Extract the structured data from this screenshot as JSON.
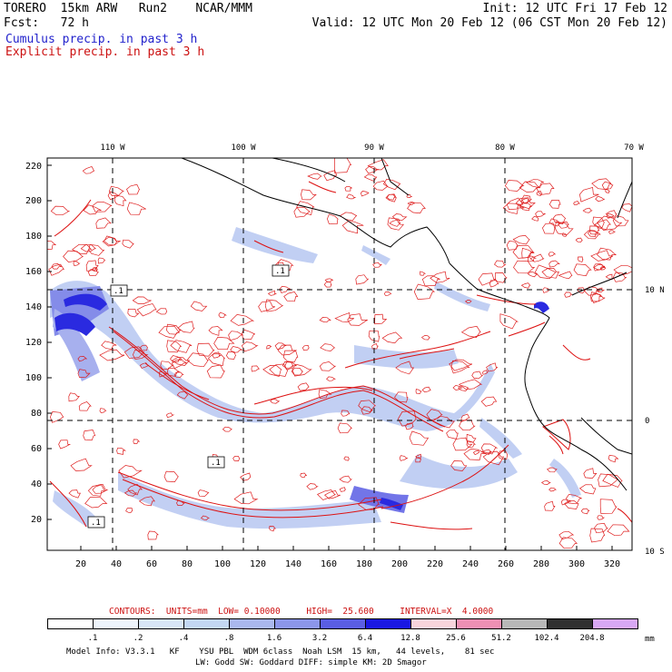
{
  "header": {
    "line1_left": "TORERO  15km ARW   Run2    NCAR/MMM",
    "line1_right": "Init: 12 UTC Fri 17 Feb 12",
    "line2_left": "Fcst:   72 h",
    "line2_right": "Valid: 12 UTC Mon 20 Feb 12 (06 CST Mon 20 Feb 12)",
    "line3": "Cumulus precip. in past 3 h",
    "line4": "Explicit precip. in past 3 h"
  },
  "top_lon_labels": [
    "110 W",
    "100 W",
    "90 W",
    "80 W",
    "70 W"
  ],
  "right_lat_labels": [
    "10 N",
    "0",
    "10 S"
  ],
  "left_axis": [
    "220",
    "200",
    "180",
    "160",
    "140",
    "120",
    "100",
    "80",
    "60",
    "40",
    "20"
  ],
  "bottom_axis": [
    "20",
    "40",
    "60",
    "80",
    "100",
    "120",
    "140",
    "160",
    "180",
    "200",
    "220",
    "240",
    "260",
    "280",
    "300",
    "320"
  ],
  "map_labels": [
    ".1",
    ".1",
    ".1",
    ".1"
  ],
  "contour_info": "CONTOURS:  UNITS=mm  LOW= 0.10000     HIGH=  25.600     INTERVAL=X  4.0000",
  "legend": {
    "labels": [
      ".1",
      ".2",
      ".4",
      ".8",
      "1.6",
      "3.2",
      "6.4",
      "12.8",
      "25.6",
      "51.2",
      "102.4",
      "204.8"
    ],
    "units": "mm",
    "colors": [
      "#ffffff",
      "#eef4fb",
      "#d8e6f6",
      "#c3d7f2",
      "#aab8ee",
      "#8c96ea",
      "#5a5ee4",
      "#1a18e2",
      "#f8d4dc",
      "#ee90b4",
      "#b8b8b8",
      "#303030",
      "#d8a8f4"
    ]
  },
  "model_info_1": "Model Info: V3.3.1   KF    YSU PBL  WDM 6class  Noah LSM  15 km,   44 levels,    81 sec",
  "model_info_2": "LW: Godd SW: Goddard DIFF: simple KM: 2D Smagor",
  "colors": {
    "explicit": "#dd1111",
    "cumulus": "#2a2ae0"
  }
}
